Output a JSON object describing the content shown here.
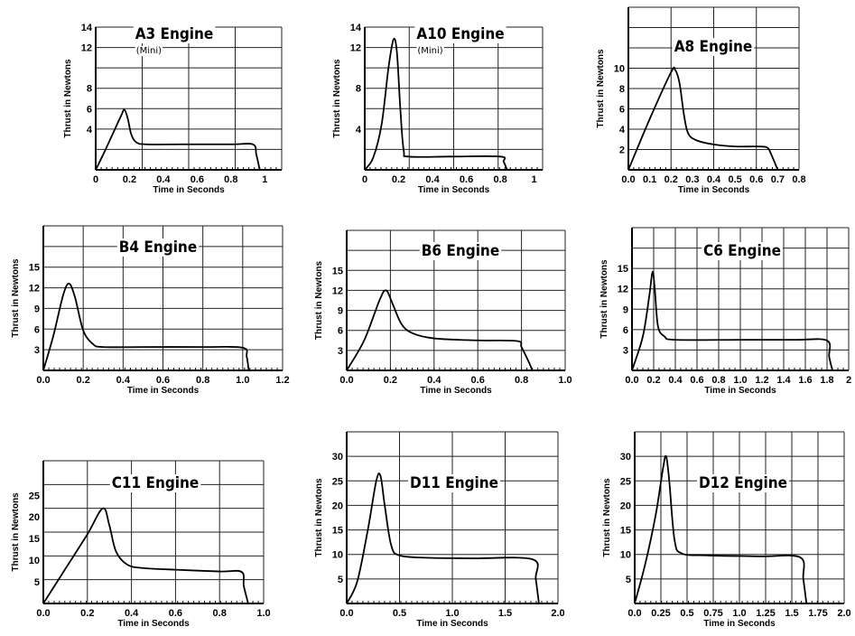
{
  "chart_data": [
    {
      "type": "line",
      "title": "A3 Engine",
      "subtitle": "(Mini)",
      "xlabel": "Time in Seconds",
      "ylabel": "Thrust in Newtons",
      "xlim": [
        0,
        1.1
      ],
      "ylim": [
        0,
        14
      ],
      "xticks": [
        0,
        0.2,
        0.4,
        0.6,
        0.8,
        1
      ],
      "xtick_labels": [
        "0",
        "0.2",
        "0.4",
        "0.6",
        "0.8",
        "1"
      ],
      "yticks": [
        4,
        6,
        8,
        12,
        14
      ],
      "ytick_labels": [
        "4",
        "6",
        "8",
        "12",
        "14"
      ],
      "series": [
        {
          "x": [
            0,
            0.05,
            0.1,
            0.15,
            0.17,
            0.19,
            0.21,
            0.24,
            0.3,
            0.5,
            0.8,
            0.93,
            0.95,
            0.97
          ],
          "y": [
            0,
            1.7,
            3.5,
            5.3,
            5.9,
            5.0,
            3.5,
            2.7,
            2.5,
            2.5,
            2.5,
            2.5,
            1.5,
            0
          ]
        }
      ]
    },
    {
      "type": "line",
      "title": "A10 Engine",
      "subtitle": "(Mini)",
      "xlabel": "Time in Seconds",
      "ylabel": "Thrust in Newtons",
      "xlim": [
        0,
        1.05
      ],
      "ylim": [
        0,
        14
      ],
      "xticks": [
        0,
        0.2,
        0.4,
        0.6,
        0.8,
        1
      ],
      "xtick_labels": [
        "0",
        "0.2",
        "0.4",
        "0.6",
        "0.8",
        "1"
      ],
      "yticks": [
        4,
        8,
        12,
        14
      ],
      "ytick_labels": [
        "4",
        "8",
        "12",
        "14"
      ],
      "series": [
        {
          "x": [
            0,
            0.05,
            0.1,
            0.14,
            0.17,
            0.19,
            0.21,
            0.23,
            0.26,
            0.5,
            0.8,
            0.82,
            0.84
          ],
          "y": [
            0,
            1.2,
            4.5,
            10.0,
            12.8,
            11.5,
            6.0,
            1.9,
            1.3,
            1.3,
            1.3,
            0.8,
            0
          ]
        }
      ]
    },
    {
      "type": "line",
      "title": "A8 Engine",
      "subtitle": "",
      "xlabel": "Time in Seconds",
      "ylabel": "Thrust in Newtons",
      "xlim": [
        0,
        0.8
      ],
      "ylim": [
        0,
        16
      ],
      "xticks": [
        0,
        0.1,
        0.2,
        0.3,
        0.4,
        0.5,
        0.6,
        0.7,
        0.8
      ],
      "xtick_labels": [
        "0.0",
        "0.1",
        "0.2",
        "0.3",
        "0.4",
        "0.5",
        "0.6",
        "0.7",
        "0.8"
      ],
      "yticks": [
        2,
        4,
        6,
        8,
        10
      ],
      "ytick_labels": [
        "2",
        "4",
        "6",
        "8",
        "10"
      ],
      "series": [
        {
          "x": [
            0,
            0.1,
            0.2,
            0.22,
            0.24,
            0.26,
            0.28,
            0.32,
            0.4,
            0.5,
            0.6,
            0.65,
            0.67,
            0.7
          ],
          "y": [
            0,
            5.0,
            9.6,
            9.8,
            8.5,
            5.5,
            3.6,
            2.9,
            2.5,
            2.3,
            2.3,
            2.2,
            1.5,
            0
          ]
        }
      ]
    },
    {
      "type": "line",
      "title": "B4 Engine",
      "subtitle": "",
      "xlabel": "Time in Seconds",
      "ylabel": "Thrust in Newtons",
      "xlim": [
        0,
        1.2
      ],
      "ylim": [
        0,
        21
      ],
      "xticks": [
        0,
        0.2,
        0.4,
        0.6,
        0.8,
        1.0,
        1.2
      ],
      "xtick_labels": [
        "0.0",
        "0.2",
        "0.4",
        "0.6",
        "0.8",
        "1.0",
        "1.2"
      ],
      "yticks": [
        3,
        6,
        9,
        12,
        15
      ],
      "ytick_labels": [
        "3",
        "6",
        "9",
        "12",
        "15"
      ],
      "series": [
        {
          "x": [
            0,
            0.05,
            0.1,
            0.13,
            0.16,
            0.2,
            0.25,
            0.3,
            0.5,
            0.8,
            1.0,
            1.02,
            1.03
          ],
          "y": [
            0,
            5.0,
            11.0,
            12.6,
            10.5,
            5.8,
            3.8,
            3.4,
            3.4,
            3.4,
            3.3,
            2.0,
            0
          ]
        }
      ]
    },
    {
      "type": "line",
      "title": "B6 Engine",
      "subtitle": "",
      "xlabel": "Time in Seconds",
      "ylabel": "Thrust in Newtons",
      "xlim": [
        0,
        1.0
      ],
      "ylim": [
        0,
        21
      ],
      "xticks": [
        0,
        0.2,
        0.4,
        0.6,
        0.8,
        1.0
      ],
      "xtick_labels": [
        "0.0",
        "0.2",
        "0.4",
        "0.6",
        "0.8",
        "1.0"
      ],
      "yticks": [
        3,
        6,
        9,
        12,
        15
      ],
      "ytick_labels": [
        "3",
        "6",
        "9",
        "12",
        "15"
      ],
      "series": [
        {
          "x": [
            0,
            0.08,
            0.15,
            0.18,
            0.21,
            0.25,
            0.3,
            0.4,
            0.6,
            0.78,
            0.8,
            0.83,
            0.85
          ],
          "y": [
            0,
            4.5,
            10.5,
            12.0,
            10.0,
            7.0,
            5.6,
            4.8,
            4.5,
            4.4,
            3.5,
            1.5,
            0
          ]
        }
      ]
    },
    {
      "type": "line",
      "title": "C6 Engine",
      "subtitle": "",
      "xlabel": "Time in Seconds",
      "ylabel": "Thrust in Newtons",
      "xlim": [
        0,
        2.0
      ],
      "ylim": [
        0,
        21
      ],
      "xticks": [
        0,
        0.2,
        0.4,
        0.6,
        0.8,
        1.0,
        1.2,
        1.4,
        1.6,
        1.8,
        2.0
      ],
      "xtick_labels": [
        "0.0",
        "0.2",
        "0.4",
        "0.6",
        "0.8",
        "1.0",
        "1.2",
        "1.4",
        "1.6",
        "1.8",
        "2"
      ],
      "yticks": [
        3,
        6,
        9,
        12,
        15
      ],
      "ytick_labels": [
        "3",
        "6",
        "9",
        "12",
        "15"
      ],
      "series": [
        {
          "x": [
            0,
            0.1,
            0.16,
            0.19,
            0.21,
            0.24,
            0.3,
            0.4,
            1.0,
            1.5,
            1.8,
            1.82,
            1.85
          ],
          "y": [
            0,
            5.0,
            11.0,
            14.5,
            12.0,
            6.5,
            5.0,
            4.5,
            4.5,
            4.5,
            4.4,
            2.0,
            0
          ]
        }
      ]
    },
    {
      "type": "line",
      "title": "C11 Engine",
      "subtitle": "",
      "xlabel": "Time in Seconds",
      "ylabel": "Thrust in Newtons",
      "xlim": [
        0,
        1.0
      ],
      "ylim": [
        0,
        33
      ],
      "xticks": [
        0,
        0.2,
        0.4,
        0.6,
        0.8,
        1.0
      ],
      "xtick_labels": [
        "0.0",
        "0.2",
        "0.4",
        "0.6",
        "0.8",
        "1.0"
      ],
      "yticks": [
        5,
        10,
        15,
        20,
        25
      ],
      "ytick_labels": [
        "5",
        "10",
        "15",
        "20",
        "25"
      ],
      "series": [
        {
          "x": [
            0,
            0.1,
            0.2,
            0.27,
            0.3,
            0.33,
            0.38,
            0.45,
            0.6,
            0.8,
            0.9,
            0.91,
            0.93
          ],
          "y": [
            0,
            8.0,
            16.0,
            22.0,
            18.0,
            12.0,
            9.0,
            8.2,
            7.8,
            7.4,
            7.3,
            4.0,
            0
          ]
        }
      ]
    },
    {
      "type": "line",
      "title": "D11 Engine",
      "subtitle": "",
      "xlabel": "Time in Seconds",
      "ylabel": "Thrust in Newtons",
      "xlim": [
        0,
        2.0
      ],
      "ylim": [
        0,
        35
      ],
      "xticks": [
        0,
        0.5,
        1.0,
        1.5,
        2.0
      ],
      "xtick_labels": [
        "0.0",
        "0.5",
        "1.0",
        "1.5",
        "2.0"
      ],
      "yticks": [
        5,
        10,
        15,
        20,
        25,
        30
      ],
      "ytick_labels": [
        "5",
        "10",
        "15",
        "20",
        "25",
        "30"
      ],
      "series": [
        {
          "x": [
            0,
            0.1,
            0.2,
            0.28,
            0.32,
            0.36,
            0.42,
            0.5,
            0.8,
            1.2,
            1.76,
            1.79,
            1.82
          ],
          "y": [
            0,
            4.5,
            15.0,
            25.0,
            26.0,
            20.0,
            12.0,
            9.8,
            9.3,
            9.2,
            9.0,
            5.0,
            0
          ]
        }
      ]
    },
    {
      "type": "line",
      "title": "D12 Engine",
      "subtitle": "",
      "xlabel": "Time in Seconds",
      "ylabel": "Thrust in Newtons",
      "xlim": [
        0,
        2.0
      ],
      "ylim": [
        0,
        35
      ],
      "xticks": [
        0,
        0.25,
        0.5,
        0.75,
        1.0,
        1.25,
        1.5,
        1.75,
        2.0
      ],
      "xtick_labels": [
        "0.0",
        "0.25",
        "0.5",
        "0.75",
        "1.0",
        "1.25",
        "1.5",
        "1.75",
        "2.0"
      ],
      "yticks": [
        5,
        10,
        15,
        20,
        25,
        30
      ],
      "ytick_labels": [
        "5",
        "10",
        "15",
        "20",
        "25",
        "30"
      ],
      "series": [
        {
          "x": [
            0,
            0.1,
            0.2,
            0.27,
            0.3,
            0.33,
            0.38,
            0.45,
            0.7,
            1.2,
            1.58,
            1.61,
            1.64
          ],
          "y": [
            0,
            8.0,
            18.0,
            27.5,
            30.0,
            25.0,
            13.0,
            10.2,
            9.8,
            9.6,
            9.4,
            5.0,
            0
          ]
        }
      ]
    }
  ]
}
